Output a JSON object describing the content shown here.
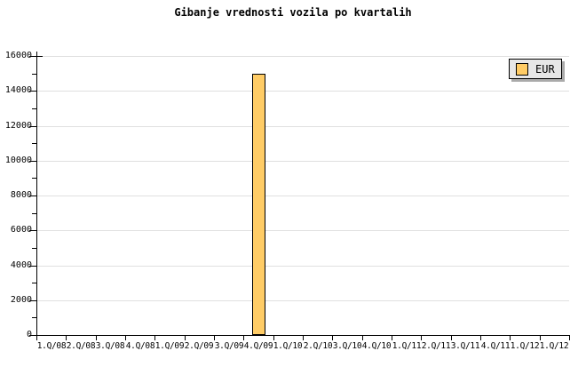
{
  "chart_data": {
    "type": "bar",
    "title": "Gibanje vrednosti vozila po kvartalih",
    "categories": [
      "1.Q/08",
      "2.Q/08",
      "3.Q/08",
      "4.Q/08",
      "1.Q/09",
      "2.Q/09",
      "3.Q/09",
      "4.Q/09",
      "1.Q/10",
      "2.Q/10",
      "3.Q/10",
      "4.Q/10",
      "1.Q/11",
      "2.Q/11",
      "3.Q/11",
      "4.Q/11",
      "1.Q/12",
      "1.Q/12"
    ],
    "series": [
      {
        "name": "EUR",
        "values": [
          null,
          null,
          null,
          null,
          null,
          null,
          null,
          15000,
          null,
          null,
          null,
          null,
          null,
          null,
          null,
          null,
          null,
          null
        ]
      }
    ],
    "xlabel": "",
    "ylabel": "",
    "ylim": [
      0,
      16000
    ],
    "y_major_step": 2000,
    "y_minor_step": 1000,
    "y_tick_labels": [
      "0",
      "2000",
      "4000",
      "6000",
      "8000",
      "10000",
      "12000",
      "14000",
      "16000"
    ],
    "grid": "horizontal-major",
    "legend": {
      "position": "top-right",
      "entries": [
        {
          "label": "EUR",
          "swatch_color": "#FFCC66"
        }
      ]
    },
    "colors": {
      "bar_fill": "#FFCC66",
      "bar_border": "#000000",
      "gridline": "#E0E0E0",
      "axis": "#000000",
      "background": "#FFFFFF",
      "legend_bg": "#E7E7E7",
      "legend_shadow": "#AAAAAA"
    }
  }
}
